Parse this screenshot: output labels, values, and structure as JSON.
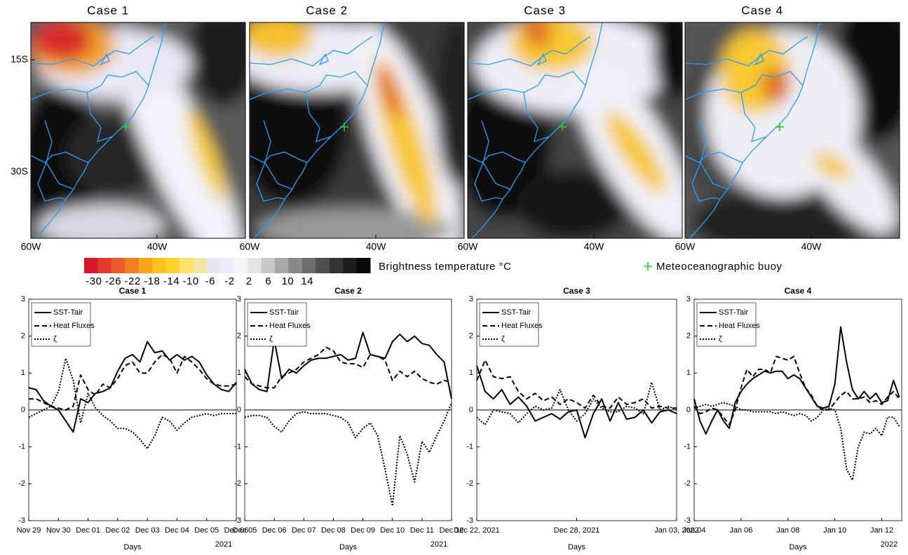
{
  "maps": {
    "titles": [
      "Case 1",
      "Case 2",
      "Case 3",
      "Case 4"
    ],
    "xlim": [
      -60,
      -26
    ],
    "ylim": [
      -38.9,
      -10
    ],
    "xticks": [
      {
        "value": -60,
        "label": "60W"
      },
      {
        "value": -40,
        "label": "40W"
      }
    ],
    "yticks": [
      {
        "value": -15,
        "label": "15S"
      },
      {
        "value": -30,
        "label": "30S"
      }
    ],
    "buoy": {
      "lon": -45,
      "lat": -24,
      "color": "#22cc22"
    }
  },
  "colorbar": {
    "label": "Brightness temperature °C",
    "lim": [
      -32,
      27
    ],
    "ticks": [
      -30,
      -26,
      -22,
      -18,
      -14,
      -10,
      -6,
      -2,
      2,
      6,
      10,
      14
    ],
    "colors": [
      "#d7182a",
      "#e03a2e",
      "#ea5a2c",
      "#f07f22",
      "#f8a51c",
      "#fcc11d",
      "#fdd42e",
      "#fde26b",
      "#f3e6a6",
      "#e6e6f5",
      "#ececf8",
      "#f4f4fb",
      "#e4e4e4",
      "#c8c8c8",
      "#a8a8a8",
      "#8a8a8a",
      "#6c6c6c",
      "#4e4e4e",
      "#333333",
      "#1c1c1c",
      "#080808"
    ]
  },
  "buoy_legend": "Meteoceanographic buoy",
  "chart_data": [
    {
      "type": "line",
      "title": "Case 1",
      "x_label": "Days",
      "year_label": "2021",
      "ylim": [
        -3,
        3
      ],
      "yticks": [
        -3,
        -2,
        -1,
        0,
        1,
        2,
        3
      ],
      "xlim": [
        0,
        7
      ],
      "xticks": [
        {
          "value": 0,
          "label": "Nov 29"
        },
        {
          "value": 1,
          "label": "Nov 30"
        },
        {
          "value": 2,
          "label": "Dec 01"
        },
        {
          "value": 3,
          "label": "Dec 02"
        },
        {
          "value": 4,
          "label": "Dec 03"
        },
        {
          "value": 5,
          "label": "Dec 04"
        },
        {
          "value": 6,
          "label": "Dec 05"
        },
        {
          "value": 7,
          "label": "Dec 06"
        }
      ],
      "x": [
        0,
        0.25,
        0.5,
        0.75,
        1,
        1.25,
        1.5,
        1.75,
        2,
        2.25,
        2.5,
        2.75,
        3,
        3.25,
        3.5,
        3.75,
        4,
        4.25,
        4.5,
        4.75,
        5,
        5.25,
        5.5,
        5.75,
        6,
        6.25,
        6.5,
        6.75,
        7
      ],
      "series": [
        {
          "name": "SST-Tair",
          "color": "#000000",
          "style": "solid",
          "values": [
            0.6,
            0.55,
            0.25,
            0.1,
            0.0,
            -0.3,
            -0.6,
            0.3,
            0.2,
            0.45,
            0.5,
            0.6,
            1.05,
            1.4,
            1.5,
            1.3,
            1.85,
            1.55,
            1.6,
            1.35,
            1.5,
            1.35,
            1.45,
            1.3,
            0.95,
            0.7,
            0.55,
            0.5,
            0.75
          ]
        },
        {
          "name": "Heat Fluxes",
          "color": "#000000",
          "style": "dashed",
          "values": [
            0.3,
            0.3,
            0.2,
            0.1,
            0.05,
            0.0,
            0.1,
            0.95,
            0.55,
            0.4,
            0.7,
            0.6,
            0.85,
            1.2,
            1.3,
            1.0,
            1.0,
            1.3,
            1.5,
            1.4,
            1.0,
            1.45,
            1.3,
            1.1,
            0.85,
            0.7,
            0.65,
            0.65,
            0.7
          ]
        },
        {
          "name": "ζ",
          "color": "#000000",
          "style": "dotted",
          "values": [
            -0.2,
            -0.1,
            0.0,
            0.1,
            0.5,
            1.4,
            0.8,
            -0.35,
            0.45,
            0.05,
            -0.15,
            -0.3,
            -0.5,
            -0.5,
            -0.6,
            -0.8,
            -1.05,
            -0.7,
            -0.2,
            -0.3,
            -0.55,
            -0.35,
            -0.2,
            -0.15,
            -0.1,
            -0.15,
            -0.1,
            -0.1,
            -0.1
          ]
        }
      ]
    },
    {
      "type": "line",
      "title": "Case 2",
      "x_label": "Days",
      "year_label": "2021",
      "ylim": [
        -3,
        3
      ],
      "yticks": [
        -3,
        -2,
        -1,
        0,
        1,
        2,
        3
      ],
      "xlim": [
        0,
        7
      ],
      "xticks": [
        {
          "value": 0,
          "label": "Dec 05"
        },
        {
          "value": 1,
          "label": "Dec 06"
        },
        {
          "value": 2,
          "label": "Dec 07"
        },
        {
          "value": 3,
          "label": "Dec 08"
        },
        {
          "value": 4,
          "label": "Dec 09"
        },
        {
          "value": 5,
          "label": "Dec 10"
        },
        {
          "value": 6,
          "label": "Dec 11"
        },
        {
          "value": 7,
          "label": "Dec 12"
        }
      ],
      "x": [
        0,
        0.25,
        0.5,
        0.75,
        1,
        1.25,
        1.5,
        1.75,
        2,
        2.25,
        2.5,
        2.75,
        3,
        3.25,
        3.5,
        3.75,
        4,
        4.25,
        4.5,
        4.75,
        5,
        5.25,
        5.5,
        5.75,
        6,
        6.25,
        6.5,
        6.75,
        7
      ],
      "series": [
        {
          "name": "SST-Tair",
          "color": "#000000",
          "style": "solid",
          "values": [
            1.1,
            0.7,
            0.55,
            0.5,
            1.9,
            0.85,
            1.1,
            1.0,
            1.2,
            1.35,
            1.4,
            1.4,
            1.45,
            1.5,
            1.35,
            1.4,
            2.1,
            1.5,
            1.45,
            1.4,
            1.85,
            2.05,
            1.85,
            2.0,
            1.8,
            1.75,
            1.5,
            1.3,
            0.3
          ]
        },
        {
          "name": "Heat Fluxes",
          "color": "#000000",
          "style": "dashed",
          "values": [
            0.9,
            0.7,
            0.65,
            0.6,
            0.6,
            0.9,
            1.0,
            1.1,
            1.3,
            1.4,
            1.5,
            1.7,
            1.6,
            1.3,
            1.25,
            1.25,
            1.15,
            1.5,
            1.45,
            1.35,
            0.8,
            1.05,
            0.9,
            1.05,
            0.85,
            0.75,
            0.7,
            0.8,
            0.75
          ]
        },
        {
          "name": "ζ",
          "color": "#000000",
          "style": "dotted",
          "values": [
            -0.2,
            -0.15,
            -0.15,
            -0.2,
            -0.45,
            -0.6,
            -0.3,
            -0.1,
            -0.05,
            -0.1,
            -0.1,
            -0.1,
            -0.15,
            -0.2,
            -0.35,
            -0.75,
            -0.5,
            -0.35,
            -0.7,
            -1.6,
            -2.6,
            -0.7,
            -1.2,
            -1.95,
            -0.85,
            -1.15,
            -0.7,
            -0.3,
            0.2
          ]
        }
      ]
    },
    {
      "type": "line",
      "title": "Case 3",
      "x_label": "Days",
      "ylim": [
        -3,
        3
      ],
      "yticks": [
        -3,
        -2,
        -1,
        0,
        1,
        2,
        3
      ],
      "xlim": [
        0,
        12
      ],
      "xticks": [
        {
          "value": 0,
          "label": "Dec 22, 2021"
        },
        {
          "value": 6,
          "label": "Dec 28, 2021"
        },
        {
          "value": 12,
          "label": "Jan 03, 2022"
        }
      ],
      "x": [
        0,
        0.5,
        1,
        1.5,
        2,
        2.5,
        3,
        3.5,
        4,
        4.5,
        5,
        5.5,
        6,
        6.5,
        7,
        7.5,
        8,
        8.5,
        9,
        9.5,
        10,
        10.5,
        11,
        11.5,
        12
      ],
      "series": [
        {
          "name": "SST-Tair",
          "color": "#000000",
          "style": "solid",
          "values": [
            1.2,
            0.5,
            0.3,
            0.55,
            0.15,
            0.35,
            0.1,
            -0.3,
            -0.2,
            -0.1,
            -0.25,
            -0.05,
            0.0,
            -0.75,
            -0.1,
            0.3,
            -0.3,
            0.2,
            -0.25,
            -0.2,
            0.0,
            -0.35,
            -0.05,
            0.0,
            -0.1
          ]
        },
        {
          "name": "Heat Fluxes",
          "color": "#000000",
          "style": "dashed",
          "values": [
            0.8,
            1.35,
            0.9,
            0.85,
            0.9,
            0.5,
            0.3,
            0.45,
            0.25,
            0.35,
            0.15,
            0.3,
            0.2,
            0.05,
            0.4,
            0.1,
            0.05,
            0.35,
            0.15,
            0.2,
            0.3,
            0.05,
            0.1,
            0.05,
            0.05
          ]
        },
        {
          "name": "ζ",
          "color": "#000000",
          "style": "dotted",
          "values": [
            -0.2,
            -0.4,
            0.0,
            -0.05,
            -0.1,
            -0.35,
            -0.1,
            0.1,
            0.0,
            0.05,
            0.55,
            0.0,
            -0.3,
            -0.1,
            0.3,
            0.05,
            -0.05,
            -0.05,
            0.1,
            0.05,
            -0.1,
            0.75,
            0.0,
            0.1,
            0.0
          ]
        }
      ]
    },
    {
      "type": "line",
      "title": "Case 4",
      "x_label": "Days",
      "year_label": "2022",
      "ylim": [
        -3,
        3
      ],
      "yticks": [
        -3,
        -2,
        -1,
        0,
        1,
        2,
        3
      ],
      "xlim": [
        0,
        8.85
      ],
      "xticks": [
        {
          "value": 0,
          "label": "Jan 04"
        },
        {
          "value": 2,
          "label": "Jan 06"
        },
        {
          "value": 4,
          "label": "Jan 08"
        },
        {
          "value": 6,
          "label": "Jan 10"
        },
        {
          "value": 8,
          "label": "Jan 12"
        }
      ],
      "x": [
        0,
        0.25,
        0.5,
        0.75,
        1,
        1.25,
        1.5,
        1.75,
        2,
        2.25,
        2.5,
        2.75,
        3,
        3.25,
        3.5,
        3.75,
        4,
        4.25,
        4.5,
        4.75,
        5,
        5.25,
        5.5,
        5.75,
        6,
        6.25,
        6.5,
        6.75,
        7,
        7.25,
        7.5,
        7.75,
        8,
        8.25,
        8.5,
        8.75
      ],
      "series": [
        {
          "name": "SST-Tair",
          "color": "#000000",
          "style": "solid",
          "values": [
            0.3,
            -0.3,
            -0.65,
            -0.3,
            0.0,
            -0.3,
            -0.5,
            0.2,
            0.5,
            0.7,
            0.85,
            0.95,
            1.05,
            1.0,
            1.05,
            1.05,
            0.85,
            0.95,
            0.85,
            0.6,
            0.35,
            0.1,
            0.05,
            0.1,
            0.7,
            2.25,
            1.3,
            0.55,
            0.3,
            0.5,
            0.3,
            0.45,
            0.2,
            0.25,
            0.8,
            0.35
          ]
        },
        {
          "name": "Heat Fluxes",
          "color": "#000000",
          "style": "dashed",
          "values": [
            0.1,
            -0.1,
            -0.05,
            0.05,
            0.0,
            -0.2,
            -0.4,
            0.0,
            0.6,
            1.1,
            0.9,
            1.1,
            1.1,
            1.0,
            1.45,
            1.4,
            1.35,
            1.45,
            1.0,
            0.6,
            0.4,
            0.1,
            0.0,
            0.0,
            0.2,
            0.4,
            0.5,
            0.3,
            0.3,
            0.35,
            0.2,
            0.25,
            0.15,
            0.35,
            0.5,
            0.3
          ]
        },
        {
          "name": "ζ",
          "color": "#000000",
          "style": "dotted",
          "values": [
            0.05,
            0.1,
            0.15,
            0.1,
            0.15,
            0.2,
            0.15,
            0.1,
            0.0,
            0.0,
            -0.05,
            -0.05,
            -0.05,
            -0.05,
            -0.1,
            -0.05,
            -0.1,
            -0.15,
            -0.1,
            -0.15,
            -0.3,
            -0.2,
            0.0,
            0.05,
            0.0,
            -0.5,
            -1.6,
            -1.9,
            -1.0,
            -0.6,
            -0.65,
            -0.5,
            -0.7,
            -0.2,
            -0.2,
            -0.45
          ]
        }
      ]
    }
  ]
}
